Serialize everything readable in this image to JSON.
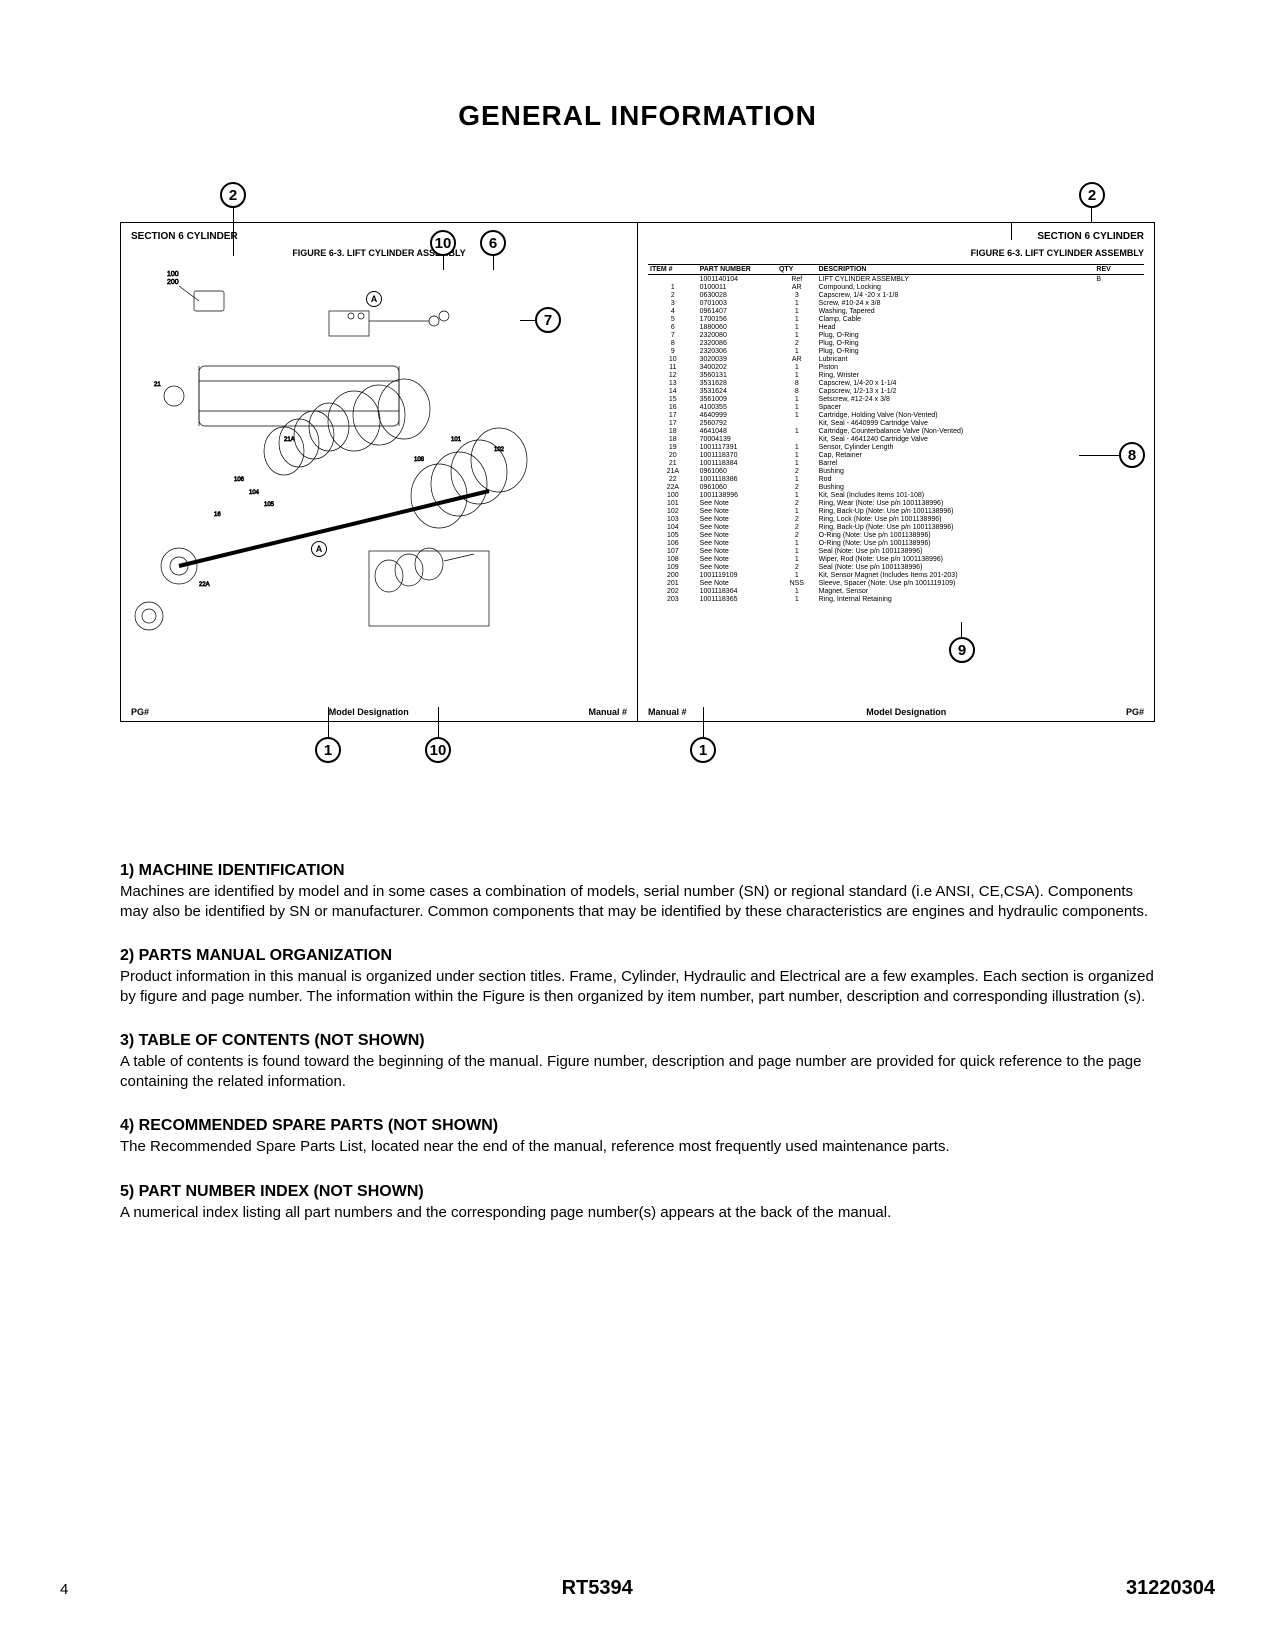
{
  "title": "GENERAL INFORMATION",
  "figure": {
    "left_panel": {
      "header": "SECTION 6  CYLINDER",
      "subtitle": "FIGURE 6-3. LIFT CYLINDER ASSEMBLY",
      "footer": {
        "left": "PG#",
        "mid": "Model Designation",
        "right": "Manual #"
      }
    },
    "right_panel": {
      "header": "SECTION 6  CYLINDER",
      "subtitle": "FIGURE 6-3.  LIFT CYLINDER ASSEMBLY",
      "table_headers": [
        "ITEM #",
        "PART NUMBER",
        "QTY",
        "DESCRIPTION",
        "REV"
      ],
      "rows": [
        [
          "",
          "1001140104",
          "Ref",
          "LIFT CYLINDER ASSEMBLY",
          "B"
        ],
        [
          "1",
          "0100011",
          "AR",
          "Compound, Locking",
          ""
        ],
        [
          "2",
          "0630028",
          "3",
          "Capscrew, 1/4 -20 x 1-1/8",
          ""
        ],
        [
          "3",
          "0701003",
          "1",
          "Screw, #10-24 x 3/8",
          ""
        ],
        [
          "4",
          "0961407",
          "1",
          "Washing, Tapered",
          ""
        ],
        [
          "5",
          "1700156",
          "1",
          "Clamp, Cable",
          ""
        ],
        [
          "6",
          "1880060",
          "1",
          "Head",
          ""
        ],
        [
          "7",
          "2320080",
          "1",
          "Plug, O-Ring",
          ""
        ],
        [
          "8",
          "2320086",
          "2",
          "Plug, O-Ring",
          ""
        ],
        [
          "9",
          "2320306",
          "1",
          "Plug, O-Ring",
          ""
        ],
        [
          "10",
          "3020039",
          "AR",
          "Lubricant",
          ""
        ],
        [
          "11",
          "3400202",
          "1",
          "Piston",
          ""
        ],
        [
          "12",
          "3560131",
          "1",
          "Ring, Wrister",
          ""
        ],
        [
          "13",
          "3531628",
          "8",
          "Capscrew, 1/4-20 x 1-1/4",
          ""
        ],
        [
          "14",
          "3531624",
          "8",
          "Capscrew, 1/2-13 x 1-1/2",
          ""
        ],
        [
          "15",
          "3561009",
          "1",
          "Setscrew, #12-24 x 3/8",
          ""
        ],
        [
          "16",
          "4100355",
          "1",
          "Spacer",
          ""
        ],
        [
          "17",
          "4640999",
          "1",
          "Cartridge, Holding Valve (Non-Vented)",
          ""
        ],
        [
          "17",
          "2560792",
          "",
          "Kit, Seal - 4640999 Cartridge Valve",
          ""
        ],
        [
          "18",
          "4641048",
          "1",
          "Cartridge, Counterbalance Valve (Non-Vented)",
          ""
        ],
        [
          "18",
          "70004139",
          "",
          "Kit, Seal - 4641240 Cartridge Valve",
          ""
        ],
        [
          "19",
          "1001117391",
          "1",
          "Sensor, Cylinder Length",
          ""
        ],
        [
          "20",
          "1001118370",
          "1",
          "Cap, Retainer",
          ""
        ],
        [
          "21",
          "1001118384",
          "1",
          "Barrel",
          ""
        ],
        [
          "21A",
          "0961060",
          "2",
          "Bushing",
          ""
        ],
        [
          "22",
          "1001118386",
          "1",
          "Rod",
          ""
        ],
        [
          "22A",
          "0961060",
          "2",
          "Bushing",
          ""
        ],
        [
          "100",
          "1001138996",
          "1",
          "Kit, Seal (Includes Items 101-108)",
          ""
        ],
        [
          "101",
          "See Note",
          "2",
          "Ring, Wear (Note: Use p/n 1001138996)",
          ""
        ],
        [
          "102",
          "See Note",
          "1",
          "Ring, Back-Up (Note: Use p/n 1001138996)",
          ""
        ],
        [
          "103",
          "See Note",
          "2",
          "Ring, Lock (Note: Use p/n 1001138996)",
          ""
        ],
        [
          "104",
          "See Note",
          "2",
          "Ring, Back-Up (Note: Use p/n 1001138996)",
          ""
        ],
        [
          "105",
          "See Note",
          "2",
          "O-Ring (Note: Use p/n 1001138996)",
          ""
        ],
        [
          "106",
          "See Note",
          "1",
          "O-Ring (Note: Use p/n 1001138996)",
          ""
        ],
        [
          "107",
          "See Note",
          "1",
          "Seal (Note: Use p/n 1001138996)",
          ""
        ],
        [
          "108",
          "See Note",
          "1",
          "Wiper, Rod (Note: Use p/n 1001138996)",
          ""
        ],
        [
          "109",
          "See Note",
          "2",
          "Seal (Note: Use p/n 1001138996)",
          ""
        ],
        [
          "200",
          "1001119109",
          "1",
          "Kit, Sensor Magnet (Includes Items 201-203)",
          ""
        ],
        [
          "201",
          "See Note",
          "NSS",
          "Sleeve, Spacer (Note: Use p/n 1001119109)",
          ""
        ],
        [
          "202",
          "1001118364",
          "1",
          "Magnet, Sensor",
          ""
        ],
        [
          "203",
          "1001118365",
          "1",
          "Ring, Internal Retaining",
          ""
        ]
      ],
      "footer": {
        "left": "Manual #",
        "mid": "Model Designation",
        "right": "PG#"
      }
    },
    "callouts": {
      "c2a": "2",
      "c2b": "2",
      "c10a": "10",
      "c10b": "10",
      "c6": "6",
      "c7": "7",
      "c8": "8",
      "c9": "9",
      "c1a": "1",
      "c1b": "1",
      "cA1": "A",
      "cA2": "A"
    }
  },
  "sections": [
    {
      "heading": "1) MACHINE IDENTIFICATION",
      "body": "Machines are identified by model and in some cases a combination of models, serial number (SN) or regional standard (i.e ANSI, CE,CSA). Components may also be identified by SN or manufacturer. Common components that may be identified by these characteristics are engines and hydraulic components."
    },
    {
      "heading": "2) PARTS MANUAL ORGANIZATION",
      "body": "Product information in this manual is organized under section titles. Frame, Cylinder, Hydraulic and Electrical are a few examples. Each section is organized by figure and page number. The information within the Figure is then organized by item number, part number, description and corresponding illustration (s)."
    },
    {
      "heading": "3) TABLE OF CONTENTS (NOT SHOWN)",
      "body": "A table of contents is found toward the beginning of the manual. Figure number, description and page number are provided for quick reference to the page containing the related information."
    },
    {
      "heading": "4) RECOMMENDED SPARE PARTS (NOT SHOWN)",
      "body": "The Recommended Spare Parts List, located near the end of the manual, reference most frequently used maintenance parts."
    },
    {
      "heading": "5) PART NUMBER INDEX (NOT SHOWN)",
      "body": "A numerical index listing all part numbers and the corresponding page number(s) appears at the back of the manual."
    }
  ],
  "footer": {
    "page": "4",
    "model": "RT5394",
    "manual": "31220304"
  }
}
